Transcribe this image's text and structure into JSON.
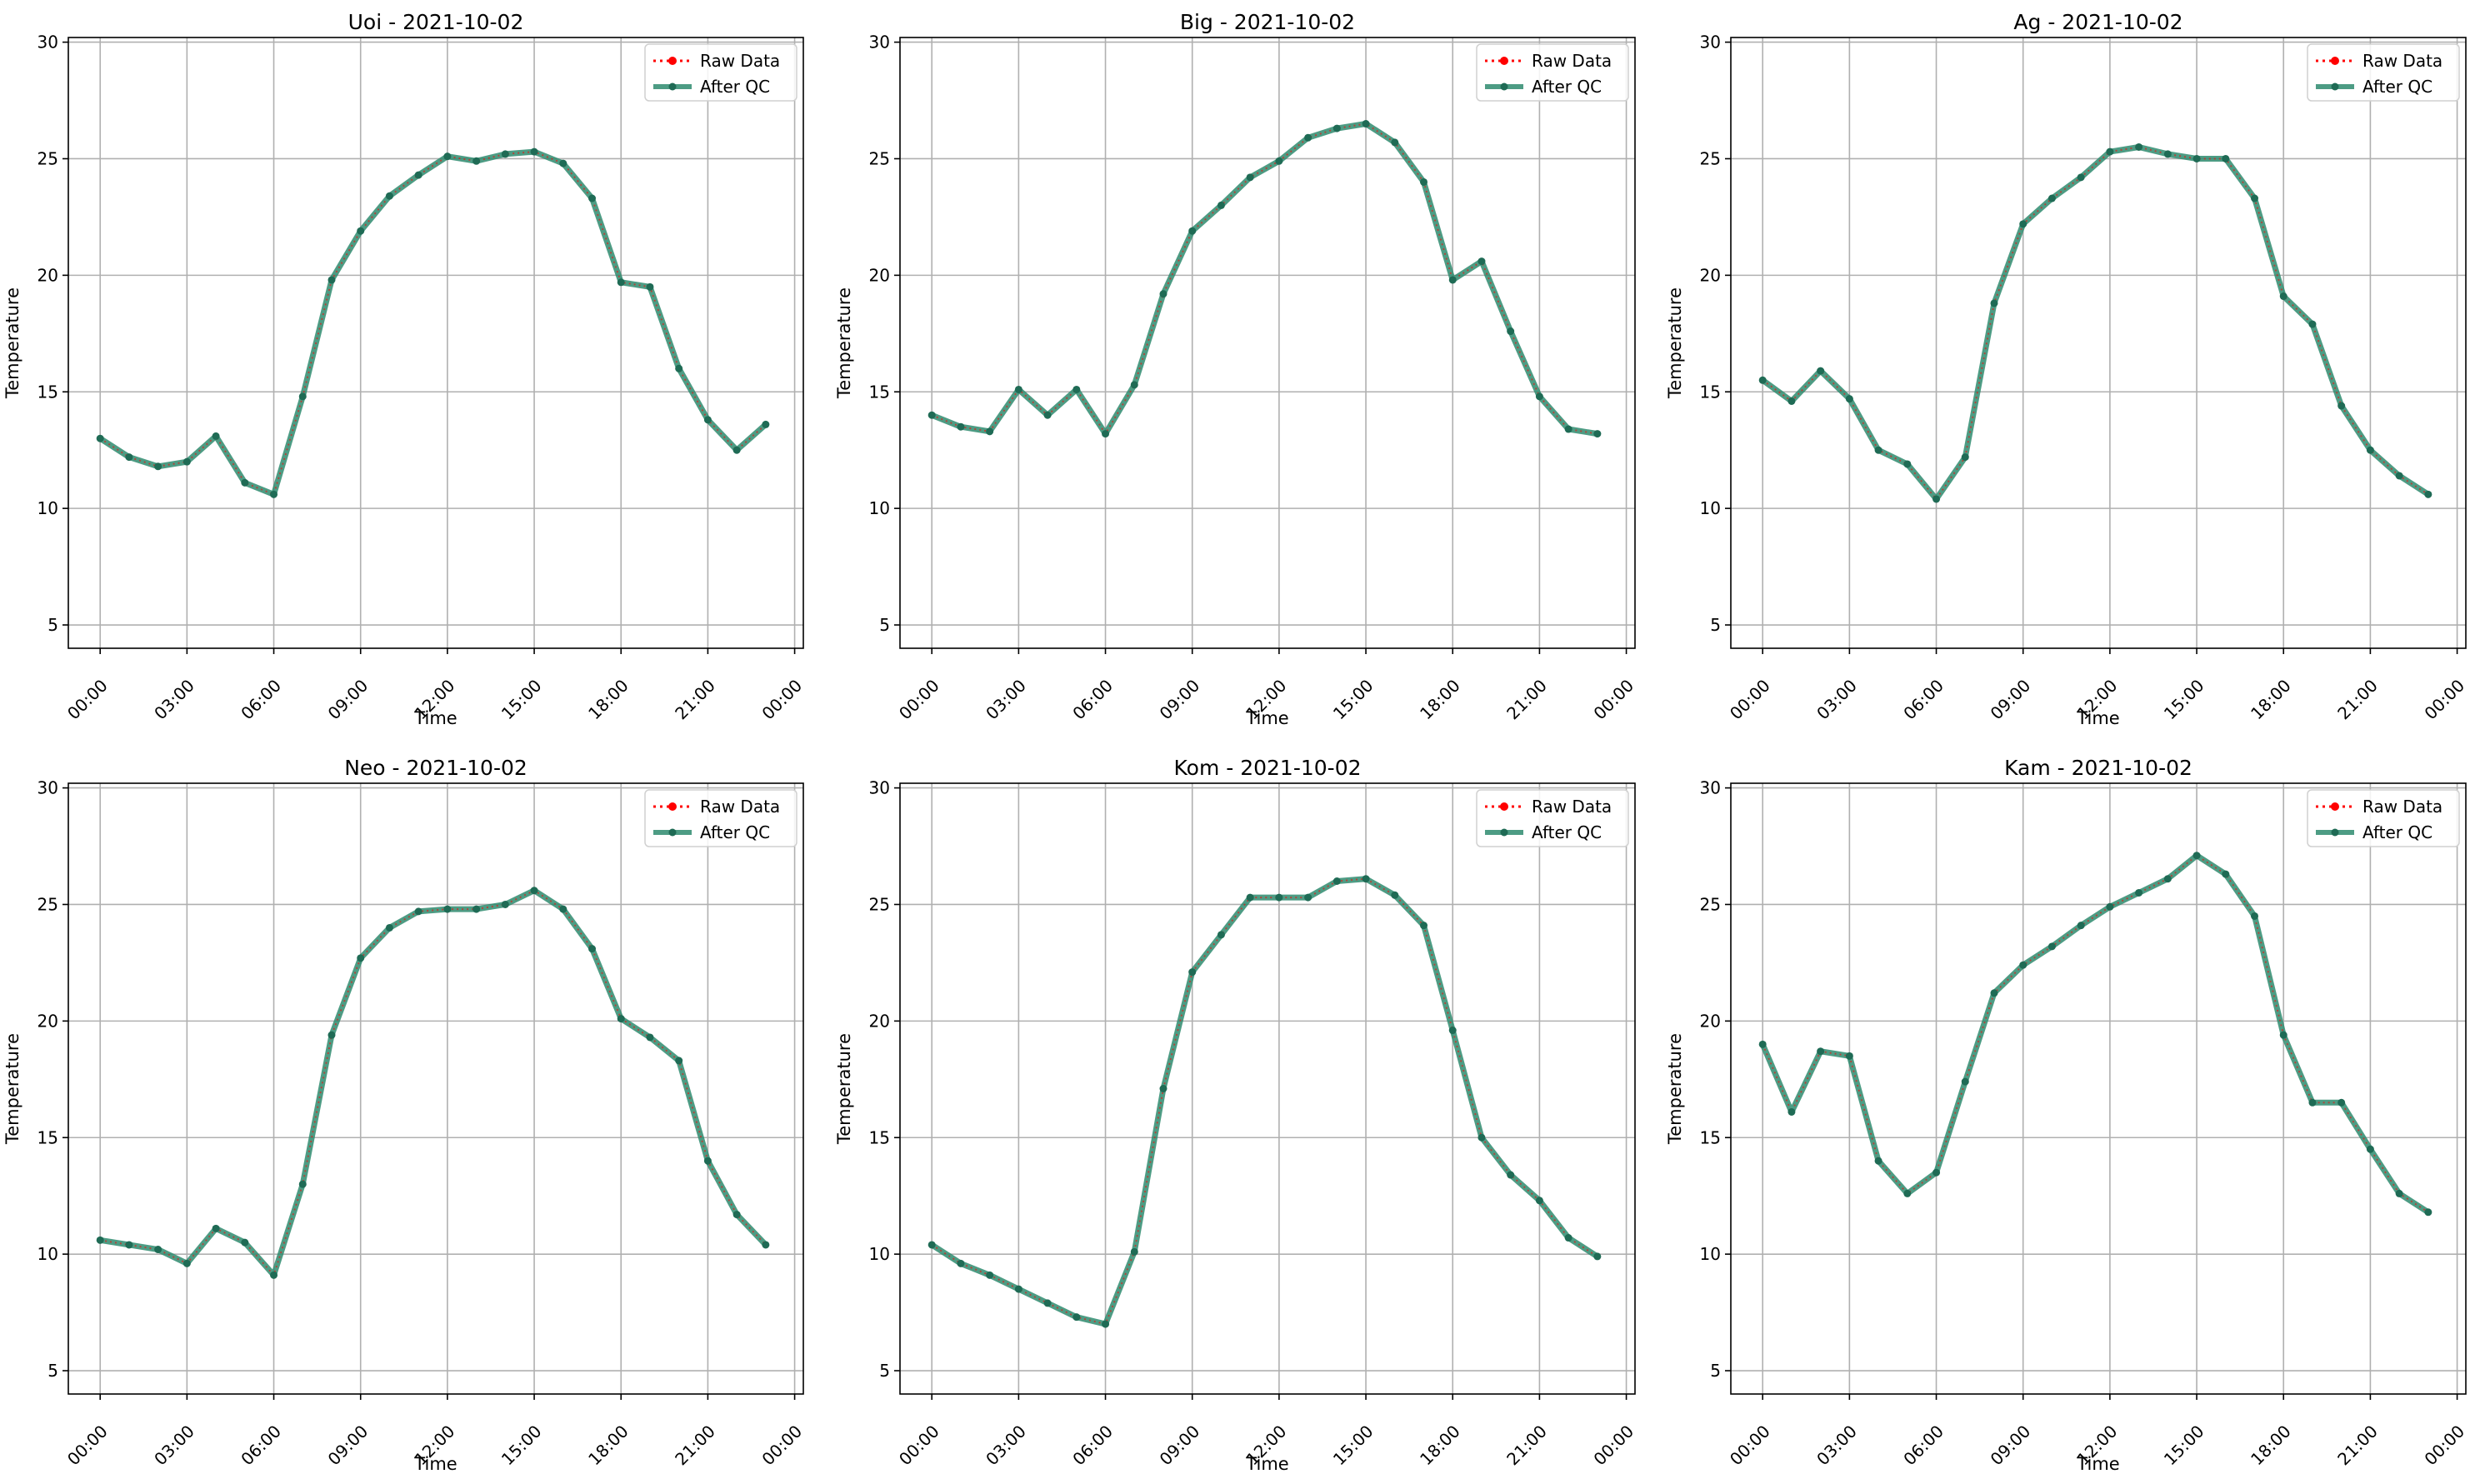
{
  "colors": {
    "raw": "#ff0000",
    "qc": "#2e8b6f",
    "qc_marker": "#1f6b55",
    "grid": "#b0b0b0",
    "frame": "#000000"
  },
  "chart_data": [
    {
      "type": "line",
      "title": "Uoi - 2021-10-02",
      "xlabel": "Time",
      "ylabel": "Temperature",
      "x": [
        "00:00",
        "01:00",
        "02:00",
        "03:00",
        "04:00",
        "05:00",
        "06:00",
        "07:00",
        "08:00",
        "09:00",
        "10:00",
        "11:00",
        "12:00",
        "13:00",
        "14:00",
        "15:00",
        "16:00",
        "17:00",
        "18:00",
        "19:00",
        "20:00",
        "21:00",
        "22:00",
        "23:00"
      ],
      "xticks": [
        "00:00",
        "03:00",
        "06:00",
        "09:00",
        "12:00",
        "15:00",
        "18:00",
        "21:00",
        "00:00"
      ],
      "yticks": [
        5,
        10,
        15,
        20,
        25,
        30
      ],
      "ylim": [
        4,
        30.2
      ],
      "grid": true,
      "legend": "top-right",
      "series": [
        {
          "name": "Raw Data",
          "values": [
            13.0,
            12.2,
            11.8,
            12.0,
            13.1,
            11.1,
            10.6,
            14.8,
            19.8,
            21.9,
            23.4,
            24.3,
            25.1,
            24.9,
            25.2,
            25.3,
            24.8,
            23.3,
            19.7,
            19.5,
            16.0,
            13.8,
            12.5,
            13.6
          ]
        },
        {
          "name": "After QC",
          "values": [
            13.0,
            12.2,
            11.8,
            12.0,
            13.1,
            11.1,
            10.6,
            14.8,
            19.8,
            21.9,
            23.4,
            24.3,
            25.1,
            24.9,
            25.2,
            25.3,
            24.8,
            23.3,
            19.7,
            19.5,
            16.0,
            13.8,
            12.5,
            13.6
          ]
        }
      ]
    },
    {
      "type": "line",
      "title": "Big - 2021-10-02",
      "xlabel": "Time",
      "ylabel": "Temperature",
      "x": [
        "00:00",
        "01:00",
        "02:00",
        "03:00",
        "04:00",
        "05:00",
        "06:00",
        "07:00",
        "08:00",
        "09:00",
        "10:00",
        "11:00",
        "12:00",
        "13:00",
        "14:00",
        "15:00",
        "16:00",
        "17:00",
        "18:00",
        "19:00",
        "20:00",
        "21:00",
        "22:00",
        "23:00"
      ],
      "xticks": [
        "00:00",
        "03:00",
        "06:00",
        "09:00",
        "12:00",
        "15:00",
        "18:00",
        "21:00",
        "00:00"
      ],
      "yticks": [
        5,
        10,
        15,
        20,
        25,
        30
      ],
      "ylim": [
        4,
        30.2
      ],
      "grid": true,
      "legend": "top-right",
      "series": [
        {
          "name": "Raw Data",
          "values": [
            14.0,
            13.5,
            13.3,
            15.1,
            14.0,
            15.1,
            13.2,
            15.3,
            19.2,
            21.9,
            23.0,
            24.2,
            24.9,
            25.9,
            26.3,
            26.5,
            25.7,
            24.0,
            19.8,
            20.6,
            17.6,
            14.8,
            13.4,
            13.2
          ]
        },
        {
          "name": "After QC",
          "values": [
            14.0,
            13.5,
            13.3,
            15.1,
            14.0,
            15.1,
            13.2,
            15.3,
            19.2,
            21.9,
            23.0,
            24.2,
            24.9,
            25.9,
            26.3,
            26.5,
            25.7,
            24.0,
            19.8,
            20.6,
            17.6,
            14.8,
            13.4,
            13.2
          ]
        }
      ]
    },
    {
      "type": "line",
      "title": "Ag - 2021-10-02",
      "xlabel": "Time",
      "ylabel": "Temperature",
      "x": [
        "00:00",
        "01:00",
        "02:00",
        "03:00",
        "04:00",
        "05:00",
        "06:00",
        "07:00",
        "08:00",
        "09:00",
        "10:00",
        "11:00",
        "12:00",
        "13:00",
        "14:00",
        "15:00",
        "16:00",
        "17:00",
        "18:00",
        "19:00",
        "20:00",
        "21:00",
        "22:00",
        "23:00"
      ],
      "xticks": [
        "00:00",
        "03:00",
        "06:00",
        "09:00",
        "12:00",
        "15:00",
        "18:00",
        "21:00",
        "00:00"
      ],
      "yticks": [
        5,
        10,
        15,
        20,
        25,
        30
      ],
      "ylim": [
        4,
        30.2
      ],
      "grid": true,
      "legend": "top-right",
      "series": [
        {
          "name": "Raw Data",
          "values": [
            15.5,
            14.6,
            15.9,
            14.7,
            12.5,
            11.9,
            10.4,
            12.2,
            18.8,
            22.2,
            23.3,
            24.2,
            25.3,
            25.5,
            25.2,
            25.0,
            25.0,
            23.3,
            19.1,
            17.9,
            14.4,
            12.5,
            11.4,
            10.6
          ]
        },
        {
          "name": "After QC",
          "values": [
            15.5,
            14.6,
            15.9,
            14.7,
            12.5,
            11.9,
            10.4,
            12.2,
            18.8,
            22.2,
            23.3,
            24.2,
            25.3,
            25.5,
            25.2,
            25.0,
            25.0,
            23.3,
            19.1,
            17.9,
            14.4,
            12.5,
            11.4,
            10.6
          ]
        }
      ]
    },
    {
      "type": "line",
      "title": "Neo - 2021-10-02",
      "xlabel": "Time",
      "ylabel": "Temperature",
      "x": [
        "00:00",
        "01:00",
        "02:00",
        "03:00",
        "04:00",
        "05:00",
        "06:00",
        "07:00",
        "08:00",
        "09:00",
        "10:00",
        "11:00",
        "12:00",
        "13:00",
        "14:00",
        "15:00",
        "16:00",
        "17:00",
        "18:00",
        "19:00",
        "20:00",
        "21:00",
        "22:00",
        "23:00"
      ],
      "xticks": [
        "00:00",
        "03:00",
        "06:00",
        "09:00",
        "12:00",
        "15:00",
        "18:00",
        "21:00",
        "00:00"
      ],
      "yticks": [
        5,
        10,
        15,
        20,
        25,
        30
      ],
      "ylim": [
        4,
        30.2
      ],
      "grid": true,
      "legend": "top-right",
      "series": [
        {
          "name": "Raw Data",
          "values": [
            10.6,
            10.4,
            10.2,
            9.6,
            11.1,
            10.5,
            9.1,
            13.0,
            19.4,
            22.7,
            24.0,
            24.7,
            24.8,
            24.8,
            25.0,
            25.6,
            24.8,
            23.1,
            20.1,
            19.3,
            18.3,
            14.0,
            11.7,
            10.4
          ]
        },
        {
          "name": "After QC",
          "values": [
            10.6,
            10.4,
            10.2,
            9.6,
            11.1,
            10.5,
            9.1,
            13.0,
            19.4,
            22.7,
            24.0,
            24.7,
            24.8,
            24.8,
            25.0,
            25.6,
            24.8,
            23.1,
            20.1,
            19.3,
            18.3,
            14.0,
            11.7,
            10.4
          ]
        }
      ]
    },
    {
      "type": "line",
      "title": "Kom - 2021-10-02",
      "xlabel": "Time",
      "ylabel": "Temperature",
      "x": [
        "00:00",
        "01:00",
        "02:00",
        "03:00",
        "04:00",
        "05:00",
        "06:00",
        "07:00",
        "08:00",
        "09:00",
        "10:00",
        "11:00",
        "12:00",
        "13:00",
        "14:00",
        "15:00",
        "16:00",
        "17:00",
        "18:00",
        "19:00",
        "20:00",
        "21:00",
        "22:00",
        "23:00"
      ],
      "xticks": [
        "00:00",
        "03:00",
        "06:00",
        "09:00",
        "12:00",
        "15:00",
        "18:00",
        "21:00",
        "00:00"
      ],
      "yticks": [
        5,
        10,
        15,
        20,
        25,
        30
      ],
      "ylim": [
        4,
        30.2
      ],
      "grid": true,
      "legend": "top-right",
      "series": [
        {
          "name": "Raw Data",
          "values": [
            10.4,
            9.6,
            9.1,
            8.5,
            7.9,
            7.3,
            7.0,
            10.1,
            17.1,
            22.1,
            23.7,
            25.3,
            25.3,
            25.3,
            26.0,
            26.1,
            25.4,
            24.1,
            19.6,
            15.0,
            13.4,
            12.3,
            10.7,
            9.9
          ]
        },
        {
          "name": "After QC",
          "values": [
            10.4,
            9.6,
            9.1,
            8.5,
            7.9,
            7.3,
            7.0,
            10.1,
            17.1,
            22.1,
            23.7,
            25.3,
            25.3,
            25.3,
            26.0,
            26.1,
            25.4,
            24.1,
            19.6,
            15.0,
            13.4,
            12.3,
            10.7,
            9.9
          ]
        }
      ]
    },
    {
      "type": "line",
      "title": "Kam - 2021-10-02",
      "xlabel": "Time",
      "ylabel": "Temperature",
      "x": [
        "00:00",
        "01:00",
        "02:00",
        "03:00",
        "04:00",
        "05:00",
        "06:00",
        "07:00",
        "08:00",
        "09:00",
        "10:00",
        "11:00",
        "12:00",
        "13:00",
        "14:00",
        "15:00",
        "16:00",
        "17:00",
        "18:00",
        "19:00",
        "20:00",
        "21:00",
        "22:00",
        "23:00"
      ],
      "xticks": [
        "00:00",
        "03:00",
        "06:00",
        "09:00",
        "12:00",
        "15:00",
        "18:00",
        "21:00",
        "00:00"
      ],
      "yticks": [
        5,
        10,
        15,
        20,
        25,
        30
      ],
      "ylim": [
        4,
        30.2
      ],
      "grid": true,
      "legend": "top-right",
      "series": [
        {
          "name": "Raw Data",
          "values": [
            19.0,
            16.1,
            18.7,
            18.5,
            14.0,
            12.6,
            13.5,
            17.4,
            21.2,
            22.4,
            23.2,
            24.1,
            24.9,
            25.5,
            26.1,
            27.1,
            26.3,
            24.5,
            19.4,
            16.5,
            16.5,
            14.5,
            12.6,
            11.8
          ]
        },
        {
          "name": "After QC",
          "values": [
            19.0,
            16.1,
            18.7,
            18.5,
            14.0,
            12.6,
            13.5,
            17.4,
            21.2,
            22.4,
            23.2,
            24.1,
            24.9,
            25.5,
            26.1,
            27.1,
            26.3,
            24.5,
            19.4,
            16.5,
            16.5,
            14.5,
            12.6,
            11.8
          ]
        }
      ]
    }
  ]
}
